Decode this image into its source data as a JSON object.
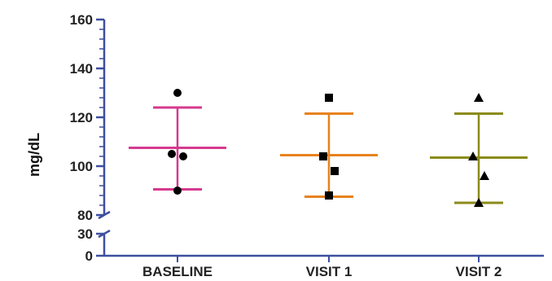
{
  "chart_data": {
    "type": "scatter",
    "ylabel": "mg/dL",
    "xlabel": "",
    "y_axis_break": {
      "lower_range": [
        0,
        30
      ],
      "upper_range": [
        80,
        160
      ]
    },
    "y_ticks_lower": [
      0,
      30
    ],
    "y_ticks_upper": [
      80,
      100,
      120,
      140,
      160
    ],
    "categories": [
      "BASELINE",
      "VISIT 1",
      "VISIT 2"
    ],
    "series": [
      {
        "category": "BASELINE",
        "color": "#d63a8f",
        "marker": "circle",
        "mean": 107.5,
        "upper": 124,
        "lower": 90.5,
        "points": [
          130,
          105,
          104,
          90
        ]
      },
      {
        "category": "VISIT 1",
        "color": "#e8821e",
        "marker": "square",
        "mean": 104.5,
        "upper": 121.5,
        "lower": 87.5,
        "points": [
          128,
          104,
          98,
          88
        ]
      },
      {
        "category": "VISIT 2",
        "color": "#8b8b1a",
        "marker": "triangle",
        "mean": 103.5,
        "upper": 121.5,
        "lower": 85,
        "points": [
          128,
          104,
          96,
          85
        ]
      }
    ],
    "axis_color": "#3d4fa0",
    "grid": false,
    "legend": "none"
  }
}
